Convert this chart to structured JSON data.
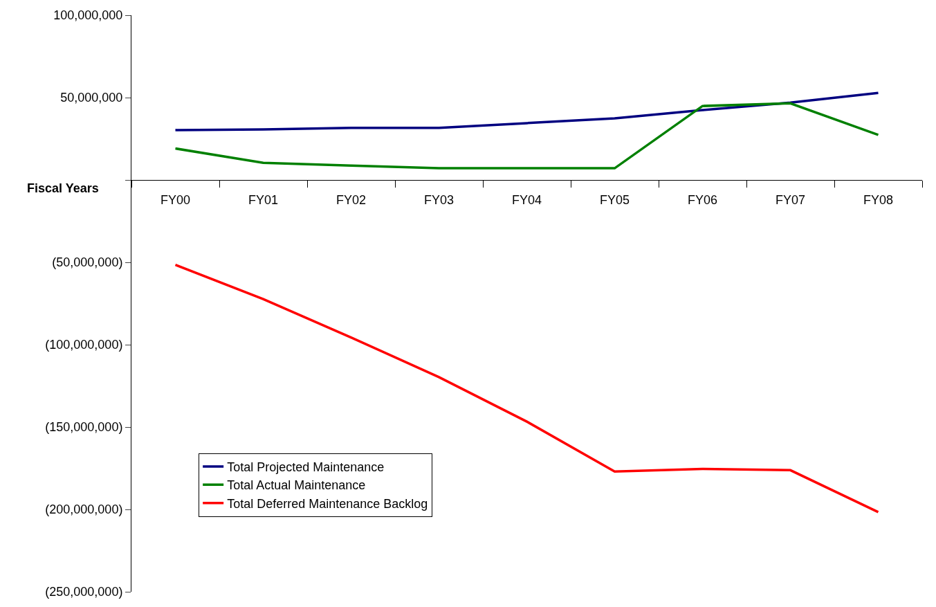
{
  "chart_data": {
    "type": "line",
    "xlabel": "Fiscal Years",
    "categories": [
      "FY00",
      "FY01",
      "FY02",
      "FY03",
      "FY04",
      "FY05",
      "FY06",
      "FY07",
      "FY08"
    ],
    "series": [
      {
        "name": "Total Projected Maintenance",
        "color": "#000080",
        "values": [
          30300000,
          30700000,
          31600000,
          31600000,
          34500000,
          37400000,
          42400000,
          47000000,
          52800000
        ]
      },
      {
        "name": "Total Actual Maintenance",
        "color": "#008000",
        "values": [
          19100000,
          10400000,
          8700000,
          7100000,
          7100000,
          7100000,
          44900000,
          46500000,
          27400000
        ]
      },
      {
        "name": "Total Deferred Maintenance Backlog",
        "color": "#ff0000",
        "values": [
          -51500000,
          -72300000,
          -95600000,
          -119700000,
          -146700000,
          -177000000,
          -175400000,
          -176200000,
          -201600000
        ]
      }
    ],
    "ylim": [
      -250000000,
      100000000
    ],
    "yticks": [
      {
        "value": -250000000,
        "label": "(250,000,000)"
      },
      {
        "value": -200000000,
        "label": "(200,000,000)"
      },
      {
        "value": -150000000,
        "label": "(150,000,000)"
      },
      {
        "value": -100000000,
        "label": "(100,000,000)"
      },
      {
        "value": -50000000,
        "label": "(50,000,000)"
      },
      {
        "value": 0,
        "label": null
      },
      {
        "value": 50000000,
        "label": "50,000,000"
      },
      {
        "value": 100000000,
        "label": "100,000,000"
      }
    ],
    "legend": "bottom left",
    "marker": "none",
    "line_style": "solid"
  }
}
